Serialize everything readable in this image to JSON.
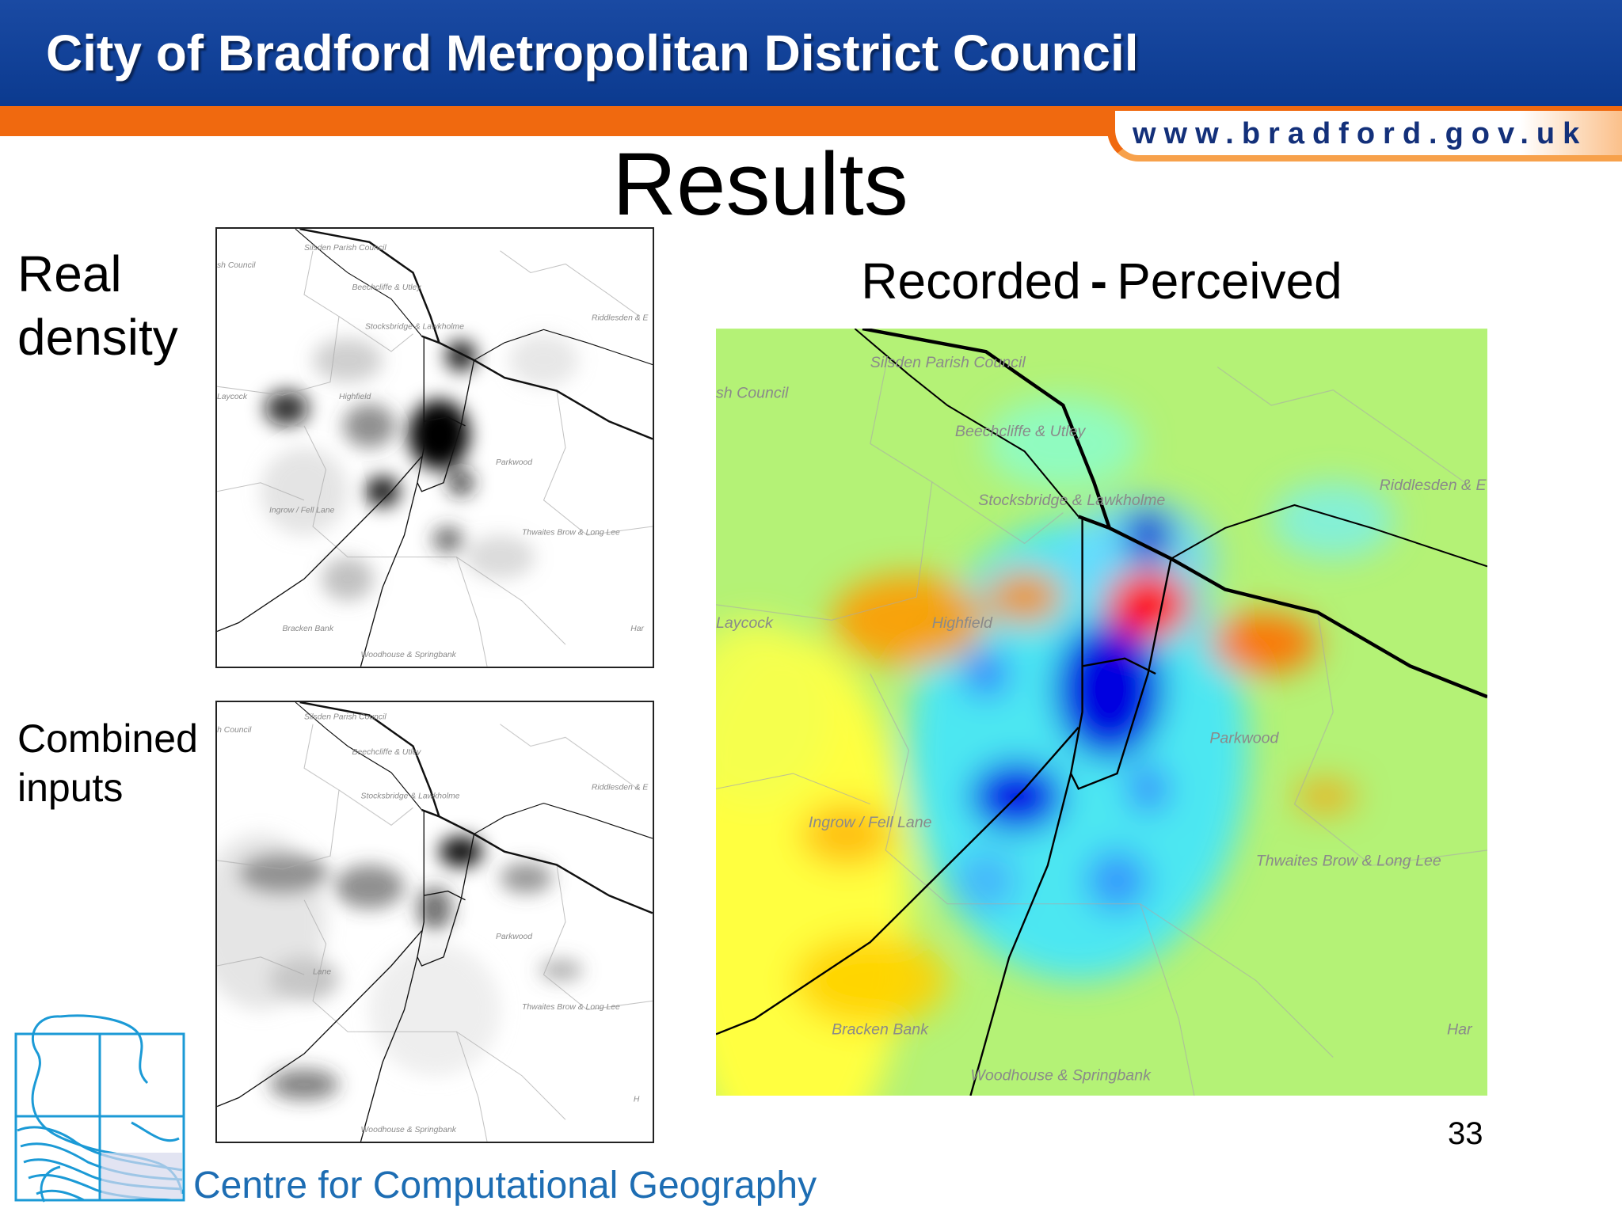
{
  "header": {
    "title": "City of Bradford Metropolitan District Council",
    "url": "www.bradford.gov.uk"
  },
  "slide": {
    "title": "Results",
    "page_number": "33"
  },
  "panels": [
    {
      "label": [
        "Real",
        "density"
      ],
      "map_labels": [
        "Silsden Parish Council",
        "sh Council",
        "Beechcliffe & Utley",
        "Stocksbridge & Lawkholme",
        "Riddlesden & E",
        "Laycock",
        "Highfield",
        "Parkwood",
        "Ingrow / Fell Lane",
        "Thwaites Brow & Long Lee",
        "Har",
        "Bracken Bank",
        "Woodhouse & Springbank"
      ]
    },
    {
      "label": [
        "Combined",
        "inputs"
      ],
      "map_labels": [
        "Silsden Parish Council",
        "h Council",
        "Beechcliffe & Utley",
        "Stocksbridge & Lawkholme",
        "Riddlesden & E",
        "Lane",
        "Parkwood",
        "Thwaites Brow & Long Lee",
        "H",
        "Woodhouse & Springbank"
      ]
    }
  ],
  "main_map": {
    "title": [
      "Recorded",
      "-",
      "Perceived"
    ],
    "map_labels": [
      "Silsden Parish Council",
      "sh Council",
      "Beechcliffe & Utley",
      "Stocksbridge & Lawkholme",
      "Riddlesden & E",
      "Laycock",
      "Highfield",
      "Parkwood",
      "Ingrow / Fell Lane",
      "Thwaites Brow & Long Lee",
      "Har",
      "Bracken Bank",
      "Woodhouse & Springbank"
    ]
  },
  "footer": {
    "org": "Centre for Computational Geography"
  }
}
